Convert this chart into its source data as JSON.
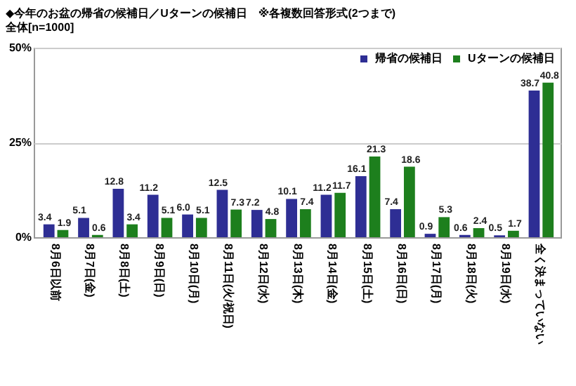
{
  "chart_data": {
    "type": "bar",
    "title": "◆今年のお盆の帰省の候補日／Uターンの候補日　※各複数回答形式(2つまで)",
    "subtitle": "全体[n=1000]",
    "categories": [
      "8月6日以前",
      "8月7日(金)",
      "8月8日(土)",
      "8月9日(日)",
      "8月10日(月)",
      "8月11日(火/祝日)",
      "8月12日(水)",
      "8月13日(木)",
      "8月14日(金)",
      "8月15日(土)",
      "8月16日(日)",
      "8月17日(月)",
      "8月18日(火)",
      "8月19日(水)",
      "全く決まっていない"
    ],
    "series": [
      {
        "name": "帰省の候補日",
        "color": "#2e2e94",
        "values": [
          3.4,
          5.1,
          12.8,
          11.2,
          6.0,
          12.5,
          7.2,
          10.1,
          11.2,
          16.1,
          7.4,
          0.9,
          0.6,
          0.5,
          38.7
        ],
        "value_labels": [
          "3.4",
          "5.1",
          "12.8",
          "11.2",
          "6.0",
          "12.5",
          "7.2",
          "10.1",
          "11.2",
          "16.1",
          "7.4",
          "0.9",
          "0.6",
          "0.5",
          "38.7"
        ]
      },
      {
        "name": "Uターンの候補日",
        "color": "#1d7f1d",
        "values": [
          1.9,
          0.6,
          3.4,
          5.1,
          5.1,
          7.3,
          4.8,
          7.4,
          11.7,
          21.3,
          18.6,
          5.3,
          2.4,
          1.7,
          40.8
        ],
        "value_labels": [
          "1.9",
          "0.6",
          "3.4",
          "5.1",
          "5.1",
          "7.3",
          "4.8",
          "7.4",
          "11.7",
          "21.3",
          "18.6",
          "5.3",
          "2.4",
          "1.7",
          "40.8"
        ]
      }
    ],
    "ylim": [
      0,
      50
    ],
    "yticks": [
      {
        "value": 0,
        "label": "0%"
      },
      {
        "value": 25,
        "label": "25%"
      },
      {
        "value": 50,
        "label": "50%"
      }
    ],
    "grid": "y",
    "legend": "top right"
  }
}
